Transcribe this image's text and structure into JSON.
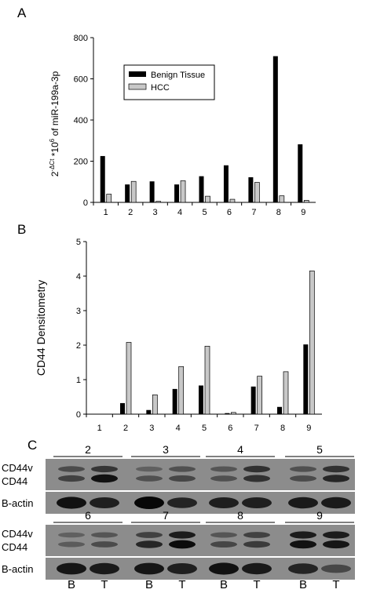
{
  "chart_data": [
    {
      "type": "bar",
      "panel": "A",
      "categories": [
        "1",
        "2",
        "3",
        "4",
        "5",
        "6",
        "7",
        "8",
        "9"
      ],
      "series": [
        {
          "name": "Benign Tissue",
          "color": "#000000",
          "values": [
            225,
            87,
            102,
            87,
            127,
            180,
            122,
            710,
            282
          ]
        },
        {
          "name": "HCC",
          "color": "#c8c8c8",
          "values": [
            40,
            102,
            5,
            105,
            30,
            15,
            97,
            32,
            10
          ]
        }
      ],
      "ylabel_parts": {
        "base": "2",
        "sup1": "-ΔCt",
        "mid": " *10",
        "sup2": "6",
        "tail": " of miR-199a-3p"
      },
      "yticks": [
        "0",
        "200",
        "400",
        "600",
        "800"
      ],
      "ylim": [
        0,
        800
      ],
      "legend_position": "top-left"
    },
    {
      "type": "bar",
      "panel": "B",
      "categories": [
        "1",
        "2",
        "3",
        "4",
        "5",
        "6",
        "7",
        "8",
        "9"
      ],
      "series": [
        {
          "color": "#000000",
          "values": [
            0,
            0.32,
            0.12,
            0.73,
            0.83,
            0.03,
            0.8,
            0.21,
            2.02
          ]
        },
        {
          "color": "#c8c8c8",
          "values": [
            0,
            2.08,
            0.56,
            1.38,
            1.97,
            0.05,
            1.1,
            1.23,
            4.15
          ]
        }
      ],
      "ylabel": "CD44 Densitometry",
      "yticks": [
        "0",
        "1",
        "2",
        "3",
        "4",
        "5"
      ],
      "ylim": [
        0,
        5
      ]
    }
  ],
  "panel_c": {
    "letter": "C",
    "top_numbers": [
      "2",
      "3",
      "4",
      "5"
    ],
    "bottom_numbers": [
      "6",
      "7",
      "8",
      "9"
    ],
    "row_labels": [
      "CD44v",
      "CD44",
      "B-actin"
    ],
    "lane_labels": [
      "B",
      "T",
      "B",
      "T",
      "B",
      "T",
      "B",
      "T"
    ],
    "top_cd44v": [
      0.35,
      0.55,
      0.15,
      0.3,
      0.25,
      0.6,
      0.3,
      0.6
    ],
    "top_cd44": [
      0.45,
      0.9,
      0.3,
      0.4,
      0.3,
      0.6,
      0.35,
      0.7
    ],
    "top_actin": [
      0.9,
      0.75,
      1.0,
      0.7,
      0.75,
      0.75,
      0.8,
      0.8
    ],
    "bottom_cd44v": [
      0.15,
      0.25,
      0.45,
      0.8,
      0.25,
      0.45,
      0.8,
      0.8
    ],
    "bottom_cd44": [
      0.2,
      0.35,
      0.7,
      0.95,
      0.4,
      0.5,
      0.9,
      0.85
    ],
    "bottom_actin": [
      0.85,
      0.8,
      0.85,
      0.75,
      0.9,
      0.8,
      0.7,
      0.35
    ]
  }
}
